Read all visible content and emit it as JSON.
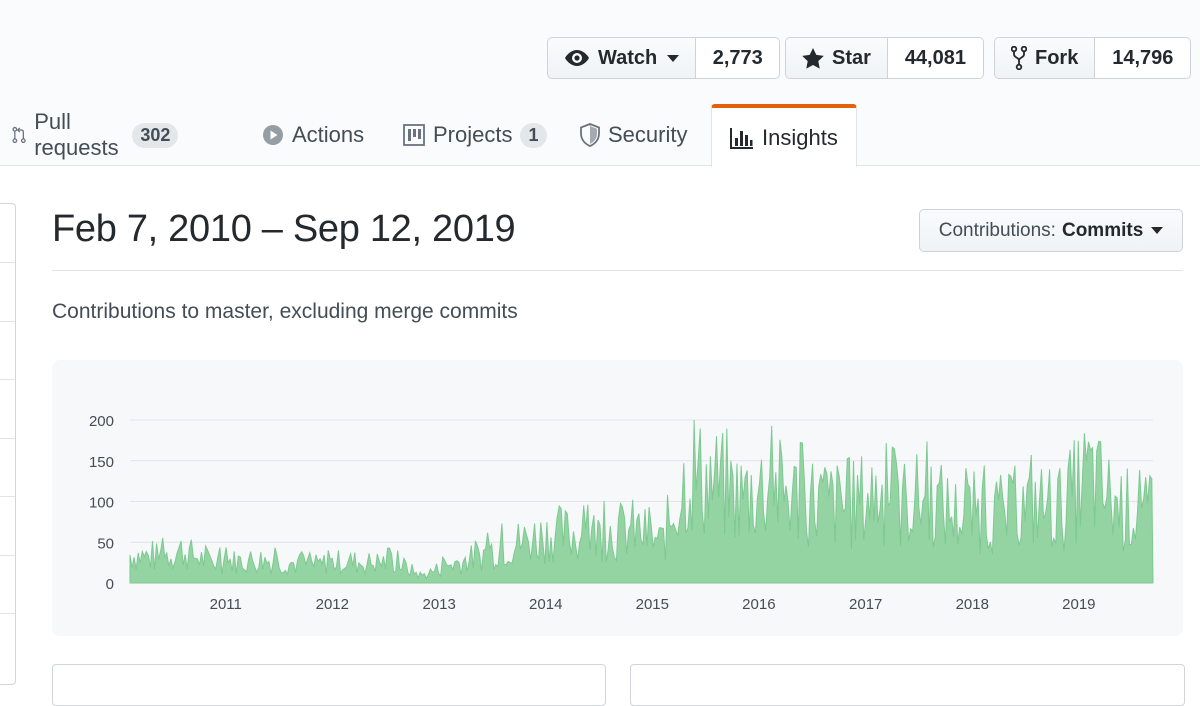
{
  "header": {
    "watch": {
      "label": "Watch",
      "count": "2,773"
    },
    "star": {
      "label": "Star",
      "count": "44,081"
    },
    "fork": {
      "label": "Fork",
      "count": "14,796"
    }
  },
  "tabs": [
    {
      "label": "Pull requests",
      "count": "302",
      "icon": "pull-request-icon"
    },
    {
      "label": "Actions",
      "icon": "play-icon"
    },
    {
      "label": "Projects",
      "count": "1",
      "icon": "project-icon"
    },
    {
      "label": "Security",
      "icon": "shield-icon"
    },
    {
      "label": "Insights",
      "icon": "graph-icon",
      "active": true
    }
  ],
  "insights": {
    "range": "Feb 7, 2010 – Sep 12, 2019",
    "dropdown_prefix": "Contributions:",
    "dropdown_value": "Commits",
    "subtitle": "Contributions to master, excluding merge commits"
  },
  "colors": {
    "accent": "#e36209",
    "series_fill": "#94d3a2",
    "series_stroke": "#7ec992"
  },
  "chart_data": {
    "type": "area",
    "title": "",
    "xlabel": "",
    "ylabel": "",
    "x_ticks": [
      "2011",
      "2012",
      "2013",
      "2014",
      "2015",
      "2016",
      "2017",
      "2018",
      "2019"
    ],
    "y_ticks": [
      0,
      50,
      100,
      150,
      200
    ],
    "ylim": [
      0,
      200
    ],
    "xlim": [
      "2010-02-07",
      "2019-09-12"
    ],
    "grid": true,
    "series": [
      {
        "x": [
          "2010-02",
          "2010-05",
          "2010-08",
          "2010-11",
          "2011-02",
          "2011-05",
          "2011-08",
          "2011-11",
          "2012-02",
          "2012-05",
          "2012-08",
          "2012-11",
          "2013-02",
          "2013-05",
          "2013-08",
          "2013-11",
          "2014-02",
          "2014-05",
          "2014-08",
          "2014-11",
          "2015-02",
          "2015-05",
          "2015-08",
          "2015-11",
          "2016-02",
          "2016-05",
          "2016-08",
          "2016-11",
          "2017-02",
          "2017-05",
          "2017-08",
          "2017-11",
          "2018-02",
          "2018-05",
          "2018-08",
          "2018-11",
          "2019-02",
          "2019-05",
          "2019-08"
        ],
        "values": [
          40,
          35,
          45,
          30,
          30,
          32,
          28,
          25,
          30,
          28,
          30,
          10,
          25,
          35,
          50,
          60,
          70,
          65,
          70,
          75,
          55,
          150,
          140,
          120,
          135,
          120,
          115,
          105,
          125,
          110,
          120,
          95,
          100,
          95,
          110,
          105,
          150,
          110,
          95
        ]
      }
    ]
  }
}
